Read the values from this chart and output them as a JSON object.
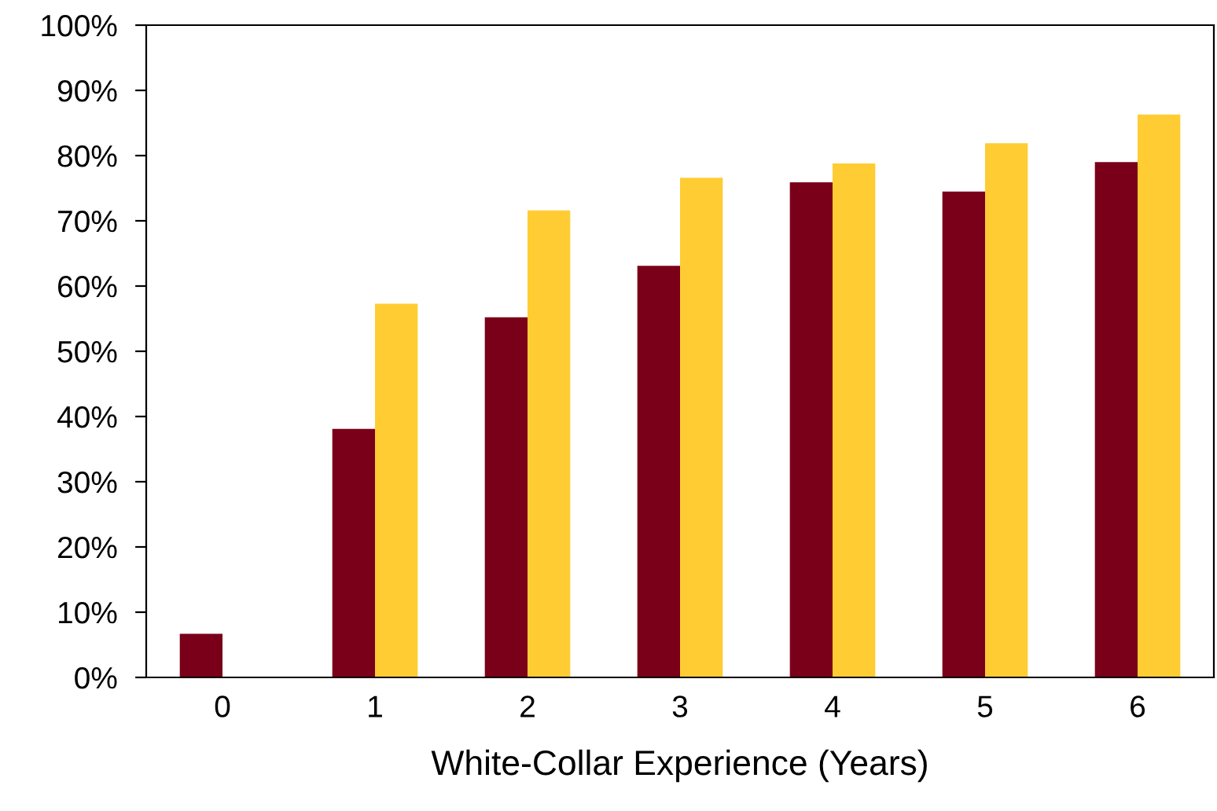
{
  "chart_data": {
    "type": "bar",
    "xlabel": "White-Collar Experience (Years)",
    "categories": [
      "0",
      "1",
      "2",
      "3",
      "4",
      "5",
      "6"
    ],
    "series": [
      {
        "color": "#7a0019",
        "values": [
          6.7,
          38.1,
          55.2,
          63.1,
          75.9,
          74.5,
          79.0
        ]
      },
      {
        "color": "#ffcc33",
        "values": [
          null,
          57.3,
          71.6,
          76.6,
          78.8,
          81.9,
          86.3
        ]
      }
    ],
    "ylim": [
      0,
      100
    ],
    "yticks": [
      {
        "value": 0,
        "label": "0%"
      },
      {
        "value": 10,
        "label": "10%"
      },
      {
        "value": 20,
        "label": "20%"
      },
      {
        "value": 30,
        "label": "30%"
      },
      {
        "value": 40,
        "label": "40%"
      },
      {
        "value": 50,
        "label": "50%"
      },
      {
        "value": 60,
        "label": "60%"
      },
      {
        "value": 70,
        "label": "70%"
      },
      {
        "value": 80,
        "label": "80%"
      },
      {
        "value": 90,
        "label": "90%"
      },
      {
        "value": 100,
        "label": "100%"
      }
    ],
    "grid": false,
    "legend": false
  }
}
